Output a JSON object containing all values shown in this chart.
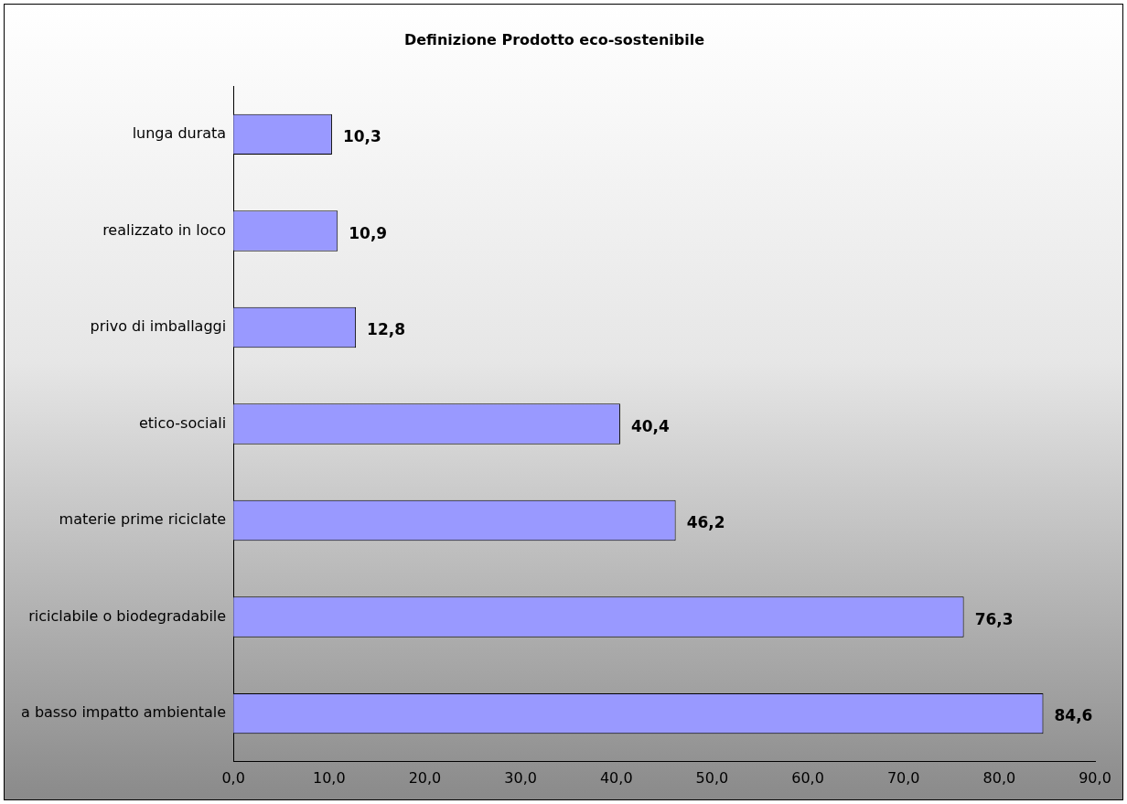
{
  "chart_data": {
    "type": "bar",
    "orientation": "horizontal",
    "title": "Definizione Prodotto eco-sostenibile",
    "categories": [
      "lunga durata",
      "realizzato in loco",
      "privo di imballaggi",
      "etico-sociali",
      "materie prime riciclate",
      "riciclabile o biodegradabile",
      "a basso impatto ambientale"
    ],
    "values": [
      10.3,
      10.9,
      12.8,
      40.4,
      46.2,
      76.3,
      84.6
    ],
    "value_labels": [
      "10,3",
      "10,9",
      "12,8",
      "40,4",
      "46,2",
      "76,3",
      "84,6"
    ],
    "color": "#9999ff",
    "xlim": [
      0,
      90
    ],
    "xticks": [
      {
        "value": 0,
        "label": "0,0"
      },
      {
        "value": 10,
        "label": "10,0"
      },
      {
        "value": 20,
        "label": "20,0"
      },
      {
        "value": 30,
        "label": "30,0"
      },
      {
        "value": 40,
        "label": "40,0"
      },
      {
        "value": 50,
        "label": "50,0"
      },
      {
        "value": 60,
        "label": "60,0"
      },
      {
        "value": 70,
        "label": "70,0"
      },
      {
        "value": 80,
        "label": "80,0"
      },
      {
        "value": 90,
        "label": "90,0"
      }
    ],
    "grid": false,
    "legend": false
  }
}
